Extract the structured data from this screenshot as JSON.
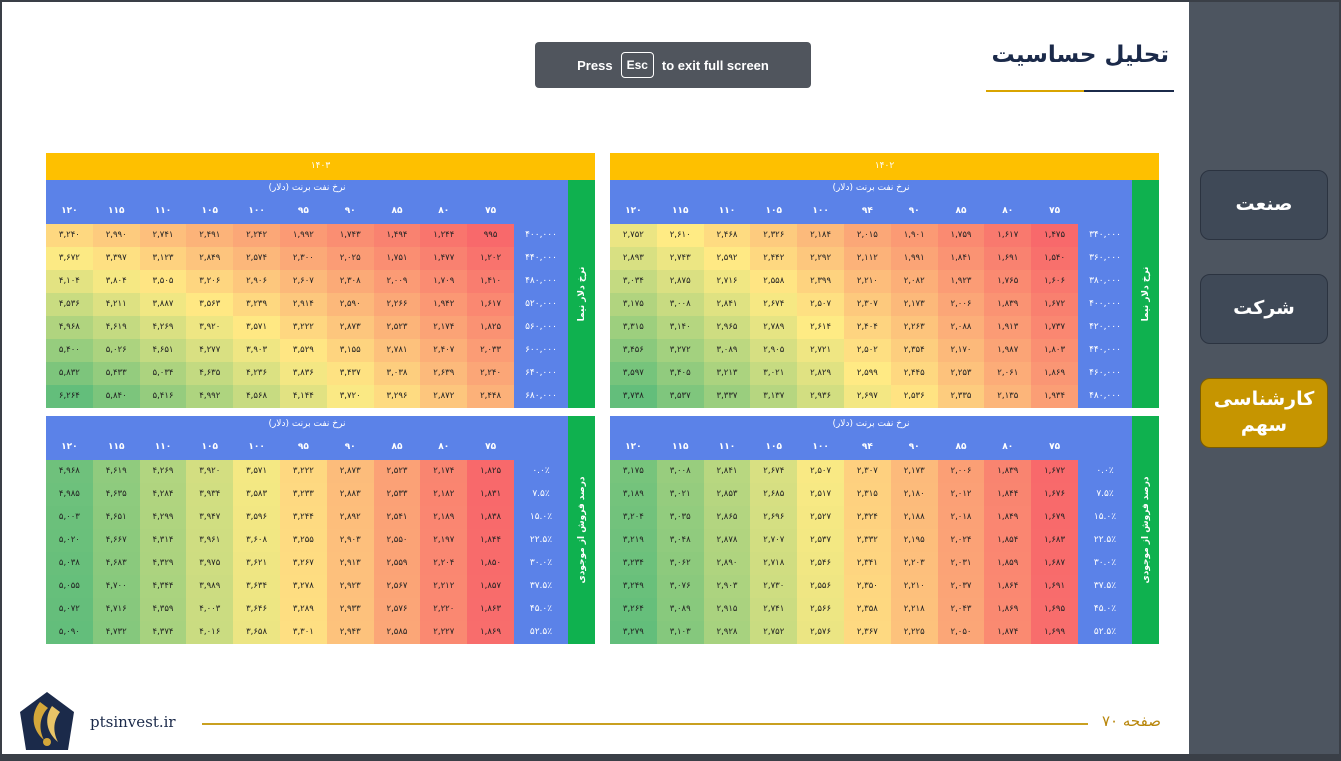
{
  "title": "تحلیل حساسیت",
  "fullscreen_notice": {
    "press": "Press",
    "key": "Esc",
    "rest": "to exit full screen"
  },
  "sidebar": {
    "items": [
      {
        "label": "صنعت",
        "active": false
      },
      {
        "label": "شرکت",
        "active": false
      },
      {
        "label": "کارشناسی سهم",
        "active": true
      }
    ]
  },
  "footer": {
    "url": "ptsinvest.ir",
    "page": "صفحه ۷۰"
  },
  "tables": [
    {
      "title": "۱۴۰۲",
      "col_caption": "نرخ نفت برنت (دلار)",
      "row_caption": "نرخ دلار نیما",
      "cols": [
        "۷۵",
        "۸۰",
        "۸۵",
        "۹۰",
        "۹۴",
        "۱۰۰",
        "۱۰۵",
        "۱۱۰",
        "۱۱۵",
        "۱۲۰"
      ],
      "rows": [
        "۳۴۰,۰۰۰",
        "۳۶۰,۰۰۰",
        "۳۸۰,۰۰۰",
        "۴۰۰,۰۰۰",
        "۴۲۰,۰۰۰",
        "۴۴۰,۰۰۰",
        "۴۶۰,۰۰۰",
        "۴۸۰,۰۰۰"
      ],
      "values": [
        [
          "۱,۴۷۵",
          "۱,۶۱۷",
          "۱,۷۵۹",
          "۱,۹۰۱",
          "۲,۰۱۵",
          "۲,۱۸۴",
          "۲,۳۲۶",
          "۲,۴۶۸",
          "۲,۶۱۰",
          "۲,۷۵۲"
        ],
        [
          "۱,۵۴۰",
          "۱,۶۹۱",
          "۱,۸۴۱",
          "۱,۹۹۱",
          "۲,۱۱۲",
          "۲,۲۹۲",
          "۲,۴۴۲",
          "۲,۵۹۲",
          "۲,۷۴۳",
          "۲,۸۹۳"
        ],
        [
          "۱,۶۰۶",
          "۱,۷۶۵",
          "۱,۹۲۳",
          "۲,۰۸۲",
          "۲,۲۱۰",
          "۲,۳۹۹",
          "۲,۵۵۸",
          "۲,۷۱۶",
          "۲,۸۷۵",
          "۳,۰۳۴"
        ],
        [
          "۱,۶۷۲",
          "۱,۸۳۹",
          "۲,۰۰۶",
          "۲,۱۷۳",
          "۲,۳۰۷",
          "۲,۵۰۷",
          "۲,۶۷۴",
          "۲,۸۴۱",
          "۳,۰۰۸",
          "۳,۱۷۵"
        ],
        [
          "۱,۷۳۷",
          "۱,۹۱۳",
          "۲,۰۸۸",
          "۲,۲۶۳",
          "۲,۴۰۴",
          "۲,۶۱۴",
          "۲,۷۸۹",
          "۲,۹۶۵",
          "۳,۱۴۰",
          "۳,۳۱۵"
        ],
        [
          "۱,۸۰۳",
          "۱,۹۸۷",
          "۲,۱۷۰",
          "۲,۳۵۴",
          "۲,۵۰۲",
          "۲,۷۲۱",
          "۲,۹۰۵",
          "۳,۰۸۹",
          "۳,۲۷۲",
          "۳,۴۵۶"
        ],
        [
          "۱,۸۶۹",
          "۲,۰۶۱",
          "۲,۲۵۳",
          "۲,۴۴۵",
          "۲,۵۹۹",
          "۲,۸۲۹",
          "۳,۰۲۱",
          "۳,۲۱۳",
          "۳,۴۰۵",
          "۳,۵۹۷"
        ],
        [
          "۱,۹۳۴",
          "۲,۱۳۵",
          "۲,۳۳۵",
          "۲,۵۳۶",
          "۲,۶۹۷",
          "۲,۹۳۶",
          "۳,۱۳۷",
          "۳,۳۳۷",
          "۳,۵۳۷",
          "۳,۷۳۸"
        ]
      ]
    },
    {
      "title": "۱۴۰۳",
      "col_caption": "نرخ نفت برنت (دلار)",
      "row_caption": "نرخ دلار نیما",
      "cols": [
        "۷۵",
        "۸۰",
        "۸۵",
        "۹۰",
        "۹۵",
        "۱۰۰",
        "۱۰۵",
        "۱۱۰",
        "۱۱۵",
        "۱۲۰"
      ],
      "rows": [
        "۴۰۰,۰۰۰",
        "۴۴۰,۰۰۰",
        "۴۸۰,۰۰۰",
        "۵۲۰,۰۰۰",
        "۵۶۰,۰۰۰",
        "۶۰۰,۰۰۰",
        "۶۴۰,۰۰۰",
        "۶۸۰,۰۰۰"
      ],
      "values": [
        [
          "۹۹۵",
          "۱,۲۴۴",
          "۱,۴۹۴",
          "۱,۷۴۳",
          "۱,۹۹۲",
          "۲,۲۴۲",
          "۲,۴۹۱",
          "۲,۷۴۱",
          "۲,۹۹۰",
          "۳,۲۴۰"
        ],
        [
          "۱,۲۰۲",
          "۱,۴۷۷",
          "۱,۷۵۱",
          "۲,۰۲۵",
          "۲,۳۰۰",
          "۲,۵۷۴",
          "۲,۸۴۹",
          "۳,۱۲۳",
          "۳,۳۹۷",
          "۳,۶۷۲"
        ],
        [
          "۱,۴۱۰",
          "۱,۷۰۹",
          "۲,۰۰۹",
          "۲,۳۰۸",
          "۲,۶۰۷",
          "۲,۹۰۶",
          "۳,۲۰۶",
          "۳,۵۰۵",
          "۳,۸۰۴",
          "۴,۱۰۴"
        ],
        [
          "۱,۶۱۷",
          "۱,۹۴۲",
          "۲,۲۶۶",
          "۲,۵۹۰",
          "۲,۹۱۴",
          "۳,۲۳۹",
          "۳,۵۶۳",
          "۳,۸۸۷",
          "۴,۲۱۱",
          "۴,۵۳۶"
        ],
        [
          "۱,۸۲۵",
          "۲,۱۷۴",
          "۲,۵۲۳",
          "۲,۸۷۳",
          "۳,۲۲۲",
          "۳,۵۷۱",
          "۳,۹۲۰",
          "۴,۲۶۹",
          "۴,۶۱۹",
          "۴,۹۶۸"
        ],
        [
          "۲,۰۳۳",
          "۲,۴۰۷",
          "۲,۷۸۱",
          "۳,۱۵۵",
          "۳,۵۲۹",
          "۳,۹۰۳",
          "۴,۲۷۷",
          "۴,۶۵۱",
          "۵,۰۲۶",
          "۵,۴۰۰"
        ],
        [
          "۲,۲۴۰",
          "۲,۶۳۹",
          "۳,۰۳۸",
          "۳,۴۳۷",
          "۳,۸۳۶",
          "۴,۲۳۶",
          "۴,۶۳۵",
          "۵,۰۳۴",
          "۵,۴۳۳",
          "۵,۸۳۲"
        ],
        [
          "۲,۴۴۸",
          "۲,۸۷۲",
          "۳,۲۹۶",
          "۳,۷۲۰",
          "۴,۱۴۴",
          "۴,۵۶۸",
          "۴,۹۹۲",
          "۵,۴۱۶",
          "۵,۸۴۰",
          "۶,۲۶۴"
        ]
      ]
    },
    {
      "title": "",
      "col_caption": "نرخ نفت برنت (دلار)",
      "row_caption": "درصد فروش از موجودی",
      "cols": [
        "۷۵",
        "۸۰",
        "۸۵",
        "۹۰",
        "۹۴",
        "۱۰۰",
        "۱۰۵",
        "۱۱۰",
        "۱۱۵",
        "۱۲۰"
      ],
      "rows": [
        "۰.۰٪",
        "۷.۵٪",
        "۱۵.۰٪",
        "۲۲.۵٪",
        "۳۰.۰٪",
        "۳۷.۵٪",
        "۴۵.۰٪",
        "۵۲.۵٪"
      ],
      "values": [
        [
          "۱,۶۷۲",
          "۱,۸۳۹",
          "۲,۰۰۶",
          "۲,۱۷۳",
          "۲,۳۰۷",
          "۲,۵۰۷",
          "۲,۶۷۴",
          "۲,۸۴۱",
          "۳,۰۰۸",
          "۳,۱۷۵"
        ],
        [
          "۱,۶۷۶",
          "۱,۸۴۴",
          "۲,۰۱۲",
          "۲,۱۸۰",
          "۲,۳۱۵",
          "۲,۵۱۷",
          "۲,۶۸۵",
          "۲,۸۵۳",
          "۳,۰۲۱",
          "۳,۱۸۹"
        ],
        [
          "۱,۶۷۹",
          "۱,۸۴۹",
          "۲,۰۱۸",
          "۲,۱۸۸",
          "۲,۳۲۴",
          "۲,۵۲۷",
          "۲,۶۹۶",
          "۲,۸۶۵",
          "۳,۰۳۵",
          "۳,۲۰۴"
        ],
        [
          "۱,۶۸۳",
          "۱,۸۵۴",
          "۲,۰۲۴",
          "۲,۱۹۵",
          "۲,۳۳۲",
          "۲,۵۳۷",
          "۲,۷۰۷",
          "۲,۸۷۸",
          "۳,۰۴۸",
          "۳,۲۱۹"
        ],
        [
          "۱,۶۸۷",
          "۱,۸۵۹",
          "۲,۰۳۱",
          "۲,۲۰۳",
          "۲,۳۴۱",
          "۲,۵۴۶",
          "۲,۷۱۸",
          "۲,۸۹۰",
          "۳,۰۶۲",
          "۳,۲۳۴"
        ],
        [
          "۱,۶۹۱",
          "۱,۸۶۴",
          "۲,۰۳۷",
          "۲,۲۱۰",
          "۲,۳۵۰",
          "۲,۵۵۶",
          "۲,۷۳۰",
          "۲,۹۰۳",
          "۳,۰۷۶",
          "۳,۲۴۹"
        ],
        [
          "۱,۶۹۵",
          "۱,۸۶۹",
          "۲,۰۴۳",
          "۲,۲۱۸",
          "۲,۳۵۸",
          "۲,۵۶۶",
          "۲,۷۴۱",
          "۲,۹۱۵",
          "۳,۰۸۹",
          "۳,۲۶۴"
        ],
        [
          "۱,۶۹۹",
          "۱,۸۷۴",
          "۲,۰۵۰",
          "۲,۲۲۵",
          "۲,۳۶۷",
          "۲,۵۷۶",
          "۲,۷۵۲",
          "۲,۹۲۸",
          "۳,۱۰۳",
          "۳,۲۷۹"
        ]
      ]
    },
    {
      "title": "",
      "col_caption": "نرخ نفت برنت (دلار)",
      "row_caption": "درصد فروش از موجودی",
      "cols": [
        "۷۵",
        "۸۰",
        "۸۵",
        "۹۰",
        "۹۵",
        "۱۰۰",
        "۱۰۵",
        "۱۱۰",
        "۱۱۵",
        "۱۲۰"
      ],
      "rows": [
        "۰.۰٪",
        "۷.۵٪",
        "۱۵.۰٪",
        "۲۲.۵٪",
        "۳۰.۰٪",
        "۳۷.۵٪",
        "۴۵.۰٪",
        "۵۲.۵٪"
      ],
      "values": [
        [
          "۱,۸۲۵",
          "۲,۱۷۴",
          "۲,۵۲۳",
          "۲,۸۷۳",
          "۳,۲۲۲",
          "۳,۵۷۱",
          "۳,۹۲۰",
          "۴,۲۶۹",
          "۴,۶۱۹",
          "۴,۹۶۸"
        ],
        [
          "۱,۸۳۱",
          "۲,۱۸۲",
          "۲,۵۳۳",
          "۲,۸۸۳",
          "۳,۲۳۳",
          "۳,۵۸۳",
          "۳,۹۳۴",
          "۴,۲۸۴",
          "۴,۶۳۵",
          "۴,۹۸۵"
        ],
        [
          "۱,۸۳۸",
          "۲,۱۸۹",
          "۲,۵۴۱",
          "۲,۸۹۲",
          "۳,۲۴۴",
          "۳,۵۹۶",
          "۳,۹۴۷",
          "۴,۲۹۹",
          "۴,۶۵۱",
          "۵,۰۰۳"
        ],
        [
          "۱,۸۴۴",
          "۲,۱۹۷",
          "۲,۵۵۰",
          "۲,۹۰۳",
          "۳,۲۵۵",
          "۳,۶۰۸",
          "۳,۹۶۱",
          "۴,۳۱۴",
          "۴,۶۶۷",
          "۵,۰۲۰"
        ],
        [
          "۱,۸۵۰",
          "۲,۲۰۴",
          "۲,۵۵۹",
          "۲,۹۱۳",
          "۳,۲۶۷",
          "۳,۶۲۱",
          "۳,۹۷۵",
          "۴,۳۲۹",
          "۴,۶۸۳",
          "۵,۰۳۸"
        ],
        [
          "۱,۸۵۷",
          "۲,۲۱۲",
          "۲,۵۶۷",
          "۲,۹۲۳",
          "۳,۲۷۸",
          "۳,۶۳۴",
          "۳,۹۸۹",
          "۴,۳۴۴",
          "۴,۷۰۰",
          "۵,۰۵۵"
        ],
        [
          "۱,۸۶۳",
          "۲,۲۲۰",
          "۲,۵۷۶",
          "۲,۹۳۳",
          "۳,۲۸۹",
          "۳,۶۴۶",
          "۴,۰۰۳",
          "۴,۳۵۹",
          "۴,۷۱۶",
          "۵,۰۷۲"
        ],
        [
          "۱,۸۶۹",
          "۲,۲۲۷",
          "۲,۵۸۵",
          "۲,۹۴۳",
          "۳,۳۰۱",
          "۳,۶۵۸",
          "۴,۰۱۶",
          "۴,۳۷۴",
          "۴,۷۳۲",
          "۵,۰۹۰"
        ]
      ]
    }
  ]
}
